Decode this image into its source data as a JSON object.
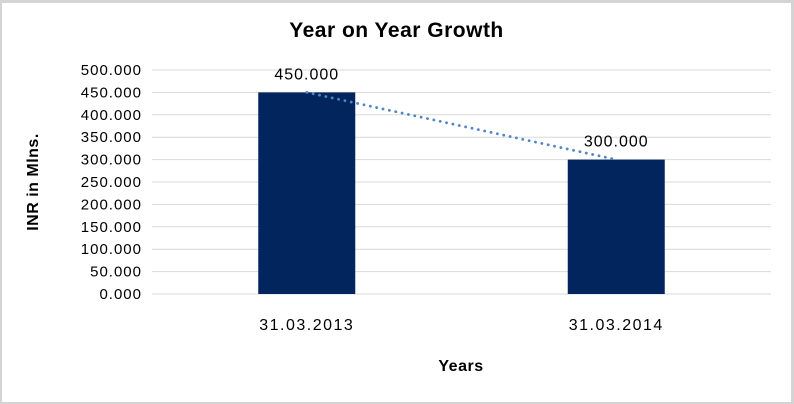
{
  "window": {
    "background": "#ffffff",
    "border_color": "#d4d4d4"
  },
  "chart_data": {
    "type": "bar",
    "title": "Year on Year Growth",
    "xlabel": "Years",
    "ylabel": "INR in Mlns.",
    "categories": [
      "31.03.2013",
      "31.03.2014"
    ],
    "values": [
      450000,
      300000
    ],
    "value_labels": [
      "450.000",
      "300.000"
    ],
    "ylim": [
      0,
      500000
    ],
    "ytick_step": 50000,
    "ytick_labels": [
      "0.000",
      "50.000",
      "100.000",
      "150.000",
      "200.000",
      "250.000",
      "300.000",
      "350.000",
      "400.000",
      "450.000",
      "500.000"
    ],
    "grid": true,
    "legend": "none",
    "trendline": {
      "style": "dotted",
      "points": [
        450000,
        300000
      ]
    }
  },
  "colors": {
    "bar": "#02255e",
    "trendline": "#4e86c8",
    "gridline": "#d9d9d9",
    "text": "#000000"
  }
}
